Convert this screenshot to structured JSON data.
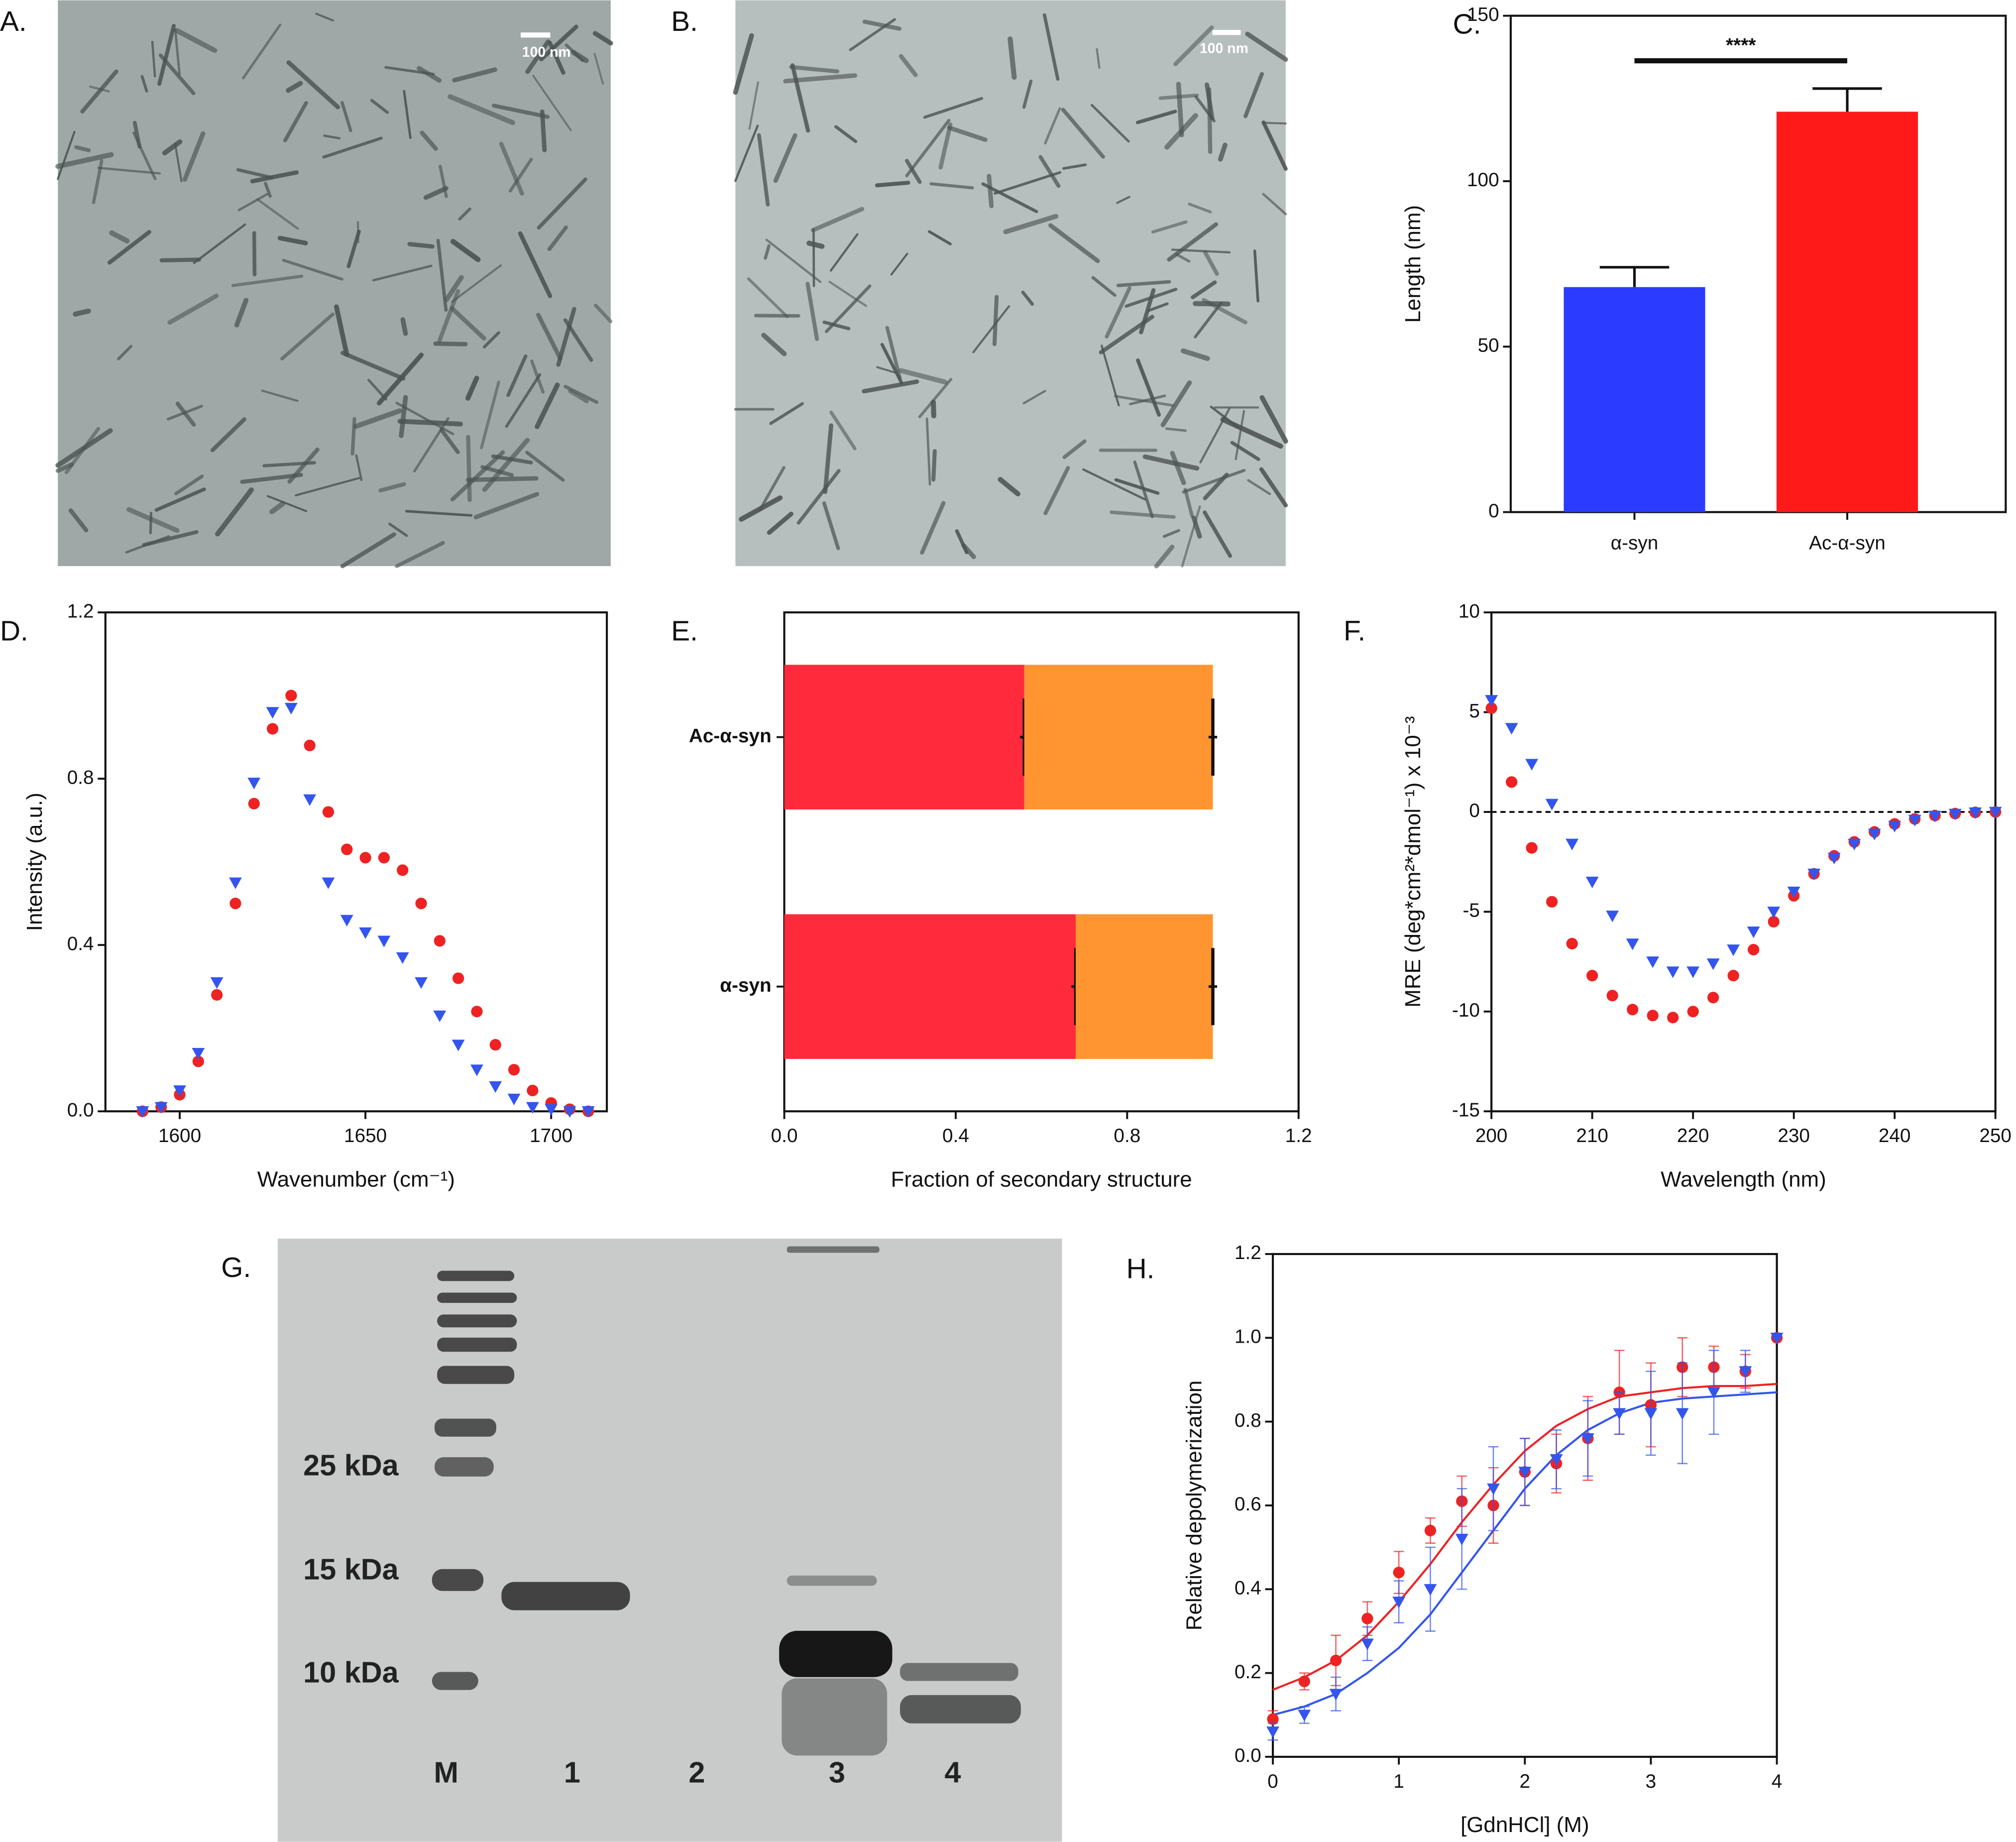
{
  "micrographs": [
    {
      "label": "A.",
      "scale_bar": "100 nm"
    },
    {
      "label": "B.",
      "scale_bar": "100 nm"
    }
  ],
  "gel": {
    "label": "G.",
    "markers": [
      "25 kDa",
      "15 kDa",
      "10 kDa"
    ],
    "lanes": [
      "M",
      "1",
      "2",
      "3",
      "4"
    ]
  },
  "chart_data": [
    {
      "type": "bar",
      "label": "C.",
      "ylabel": "Length (nm)",
      "categories": [
        "α-syn",
        "Ac-α-syn"
      ],
      "values": [
        68,
        121
      ],
      "errors": [
        6,
        7
      ],
      "colors": [
        "#2b3bff",
        "#ff1a1a"
      ],
      "annotation": "****",
      "ylim": [
        0,
        150
      ],
      "yticks": [
        0,
        50,
        100,
        150
      ]
    },
    {
      "type": "scatter",
      "label": "D.",
      "xlabel": "Wavenumber (cm⁻¹)",
      "ylabel": "Intensity (a.u.)",
      "x": [
        1590,
        1595,
        1600,
        1605,
        1610,
        1615,
        1620,
        1625,
        1630,
        1635,
        1640,
        1645,
        1650,
        1655,
        1660,
        1665,
        1670,
        1675,
        1680,
        1685,
        1690,
        1695,
        1700,
        1705,
        1710
      ],
      "series": [
        {
          "color": "#ee2222",
          "marker": "circle",
          "values": [
            0,
            0.01,
            0.04,
            0.12,
            0.28,
            0.5,
            0.74,
            0.92,
            1.0,
            0.88,
            0.72,
            0.63,
            0.61,
            0.61,
            0.58,
            0.5,
            0.41,
            0.32,
            0.24,
            0.16,
            0.1,
            0.05,
            0.02,
            0.005,
            0
          ]
        },
        {
          "color": "#3355ee",
          "marker": "triangle-down",
          "values": [
            0,
            0.01,
            0.05,
            0.14,
            0.31,
            0.55,
            0.79,
            0.96,
            0.97,
            0.75,
            0.55,
            0.46,
            0.43,
            0.41,
            0.37,
            0.31,
            0.23,
            0.16,
            0.1,
            0.06,
            0.03,
            0.01,
            0.005,
            0,
            0
          ]
        }
      ],
      "xlim": [
        1580,
        1715
      ],
      "xticks": [
        1600,
        1650,
        1700
      ],
      "ylim": [
        0,
        1.2
      ],
      "yticks": [
        {
          "value": 0,
          "label": "0.0"
        },
        0.4,
        0.8,
        1.2
      ]
    },
    {
      "type": "bar",
      "label": "E.",
      "orientation": "horizontal",
      "stacked": true,
      "xlabel": "Fraction of secondary structure",
      "categories": [
        "Ac-α-syn",
        "α-syn"
      ],
      "series": [
        {
          "color": "#ff2a3c",
          "values": [
            0.56,
            0.68
          ],
          "errors": [
            0.01,
            0.01
          ]
        },
        {
          "color": "#ff9530",
          "values": [
            0.44,
            0.32
          ],
          "errors": [
            0.01,
            0.01
          ]
        }
      ],
      "xlim": [
        0,
        1.2
      ],
      "xticks": [
        {
          "value": 0,
          "label": "0.0"
        },
        0.4,
        0.8,
        1.2
      ]
    },
    {
      "type": "scatter",
      "label": "F.",
      "xlabel": "Wavelength (nm)",
      "ylabel": "MRE (deg*cm²*dmol⁻¹) x 10⁻³",
      "x": [
        200,
        202,
        204,
        206,
        208,
        210,
        212,
        214,
        216,
        218,
        220,
        222,
        224,
        226,
        228,
        230,
        232,
        234,
        236,
        238,
        240,
        242,
        244,
        246,
        248,
        250
      ],
      "series": [
        {
          "color": "#ee2222",
          "marker": "circle",
          "values": [
            5.2,
            1.5,
            -1.8,
            -4.5,
            -6.6,
            -8.2,
            -9.2,
            -9.9,
            -10.2,
            -10.3,
            -10.0,
            -9.3,
            -8.2,
            -6.9,
            -5.5,
            -4.2,
            -3.1,
            -2.2,
            -1.5,
            -1.0,
            -0.6,
            -0.35,
            -0.18,
            -0.08,
            -0.02,
            0
          ]
        },
        {
          "color": "#3355ee",
          "marker": "triangle-down",
          "values": [
            5.6,
            4.2,
            2.4,
            0.4,
            -1.6,
            -3.5,
            -5.2,
            -6.6,
            -7.5,
            -8.0,
            -8.0,
            -7.6,
            -6.9,
            -6.0,
            -5.0,
            -4.0,
            -3.1,
            -2.3,
            -1.6,
            -1.1,
            -0.7,
            -0.4,
            -0.2,
            -0.1,
            -0.03,
            0
          ]
        }
      ],
      "reference_line": {
        "y": 0,
        "style": "dashed"
      },
      "xlim": [
        200,
        250
      ],
      "xticks": [
        200,
        210,
        220,
        230,
        240,
        250
      ],
      "ylim": [
        -15,
        10
      ],
      "yticks": [
        -15,
        -10,
        -5,
        0,
        5,
        10
      ]
    },
    {
      "type": "scatter",
      "label": "H.",
      "xlabel": "[GdnHCl] (M)",
      "ylabel": "Relative depolymerization",
      "x": [
        0,
        0.25,
        0.5,
        0.75,
        1,
        1.25,
        1.5,
        1.75,
        2,
        2.25,
        2.5,
        2.75,
        3,
        3.25,
        3.5,
        3.75,
        4
      ],
      "series": [
        {
          "color": "#ee2222",
          "marker": "circle",
          "values": [
            0.09,
            0.18,
            0.23,
            0.33,
            0.44,
            0.54,
            0.61,
            0.6,
            0.68,
            0.7,
            0.76,
            0.87,
            0.84,
            0.93,
            0.93,
            0.92,
            1.0
          ],
          "errors": [
            0.02,
            0.02,
            0.06,
            0.04,
            0.05,
            0.03,
            0.06,
            0.09,
            0.08,
            0.07,
            0.1,
            0.1,
            0.1,
            0.07,
            0.05,
            0.04,
            0
          ]
        },
        {
          "color": "#3355ee",
          "marker": "triangle-down",
          "values": [
            0.06,
            0.1,
            0.15,
            0.27,
            0.37,
            0.4,
            0.52,
            0.64,
            0.68,
            0.71,
            0.76,
            0.82,
            0.82,
            0.82,
            0.87,
            0.92,
            1.0
          ],
          "errors": [
            0.02,
            0.02,
            0.04,
            0.04,
            0.05,
            0.1,
            0.12,
            0.1,
            0.08,
            0.07,
            0.09,
            0.05,
            0.1,
            0.12,
            0.1,
            0.05,
            0
          ]
        }
      ],
      "fits": [
        {
          "color": "#ee2222",
          "values": [
            0.16,
            0.19,
            0.23,
            0.29,
            0.37,
            0.46,
            0.56,
            0.65,
            0.73,
            0.79,
            0.83,
            0.86,
            0.87,
            0.88,
            0.885,
            0.885,
            0.89
          ]
        },
        {
          "color": "#3355ee",
          "values": [
            0.1,
            0.12,
            0.15,
            0.2,
            0.26,
            0.34,
            0.44,
            0.54,
            0.64,
            0.72,
            0.78,
            0.82,
            0.845,
            0.855,
            0.86,
            0.865,
            0.87
          ]
        }
      ],
      "xlim": [
        0,
        4
      ],
      "xticks": [
        0,
        1,
        2,
        3,
        4
      ],
      "ylim": [
        0,
        1.2
      ],
      "yticks": [
        {
          "value": 0,
          "label": "0.0"
        },
        0.2,
        0.4,
        0.6,
        0.8,
        {
          "value": 1,
          "label": "1.0"
        },
        1.2
      ]
    }
  ]
}
